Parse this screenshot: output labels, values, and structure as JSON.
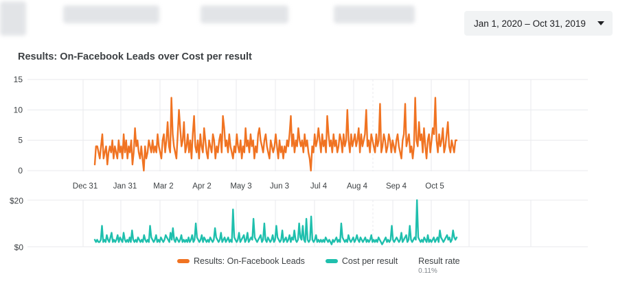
{
  "header": {
    "date_range": "Jan 1, 2020 – Oct 31, 2019"
  },
  "colors": {
    "leads": "#f07322",
    "cost": "#1fbfad",
    "grid": "#e8eaed"
  },
  "legend": {
    "leads_label": "Results: On-Facebook Leads",
    "cost_label": "Cost per result",
    "rate_label": "Result rate",
    "rate_value": "0.11%"
  },
  "chart_data": [
    {
      "type": "line",
      "title": "Results: On-Facebook Leads over Cost per result",
      "xlabel": "",
      "ylabel": "",
      "x_tick_labels": [
        "Dec 31",
        "Jan 31",
        "Mar 2",
        "Apr 2",
        "May 3",
        "Jun 3",
        "Jul 4",
        "Aug 4",
        "Sep 4",
        "Oct 5"
      ],
      "y_tick_labels": [
        "15",
        "10",
        "5",
        "0"
      ],
      "ylim": [
        0,
        15
      ],
      "grid": true,
      "series": [
        {
          "name": "Results: On-Facebook Leads",
          "values": [
            1,
            4,
            4,
            3,
            2,
            4,
            6,
            2,
            3,
            4,
            1,
            3,
            4,
            3,
            5,
            2,
            4,
            3,
            2,
            5,
            3,
            4,
            2,
            6,
            3,
            5,
            2,
            4,
            3,
            5,
            1,
            3,
            7,
            4,
            5,
            3,
            2,
            4,
            2,
            0,
            4,
            2,
            3,
            5,
            4,
            3,
            5,
            3,
            4,
            3,
            6,
            4,
            3,
            2,
            5,
            6,
            3,
            5,
            8,
            4,
            3,
            12,
            6,
            4,
            3,
            2,
            6,
            10,
            7,
            4,
            5,
            8,
            3,
            4,
            6,
            3,
            5,
            2,
            6,
            9,
            4,
            3,
            5,
            2,
            6,
            4,
            3,
            7,
            5,
            3,
            2,
            5,
            4,
            3,
            6,
            5,
            2,
            4,
            3,
            5,
            6,
            3,
            9,
            7,
            4,
            5,
            3,
            6,
            4,
            3,
            2,
            4,
            3,
            6,
            4,
            3,
            5,
            2,
            4,
            3,
            7,
            4,
            5,
            3,
            6,
            4,
            5,
            2,
            4,
            3,
            6,
            7,
            5,
            4,
            3,
            5,
            6,
            4,
            3,
            2,
            5,
            4,
            3,
            4,
            6,
            4,
            2,
            5,
            3,
            4,
            2,
            4,
            3,
            5,
            4,
            6,
            9,
            4,
            6,
            3,
            5,
            4,
            7,
            5,
            4,
            5,
            3,
            6,
            4,
            5,
            3,
            2,
            0,
            4,
            3,
            6,
            4,
            5,
            7,
            5,
            3,
            6,
            4,
            5,
            3,
            9,
            6,
            4,
            5,
            3,
            6,
            4,
            5,
            3,
            4,
            6,
            5,
            3,
            6,
            4,
            5,
            10,
            5,
            3,
            6,
            4,
            5,
            6,
            4,
            5,
            7,
            3,
            6,
            4,
            5,
            6,
            10,
            4,
            5,
            3,
            6,
            5,
            4,
            3,
            6,
            4,
            5,
            11,
            3,
            4,
            6,
            5,
            3,
            4,
            6,
            5,
            3,
            5,
            4,
            3,
            5,
            6,
            4,
            3,
            2,
            5,
            6,
            11,
            4,
            5,
            6,
            3,
            4,
            2,
            4,
            12,
            5,
            4,
            8,
            5,
            6,
            3,
            7,
            4,
            2,
            5,
            6,
            3,
            5,
            7,
            6,
            12,
            5,
            3,
            6,
            4,
            5,
            7,
            3,
            4,
            6,
            8,
            4,
            3,
            5,
            4,
            3,
            5,
            5
          ]
        }
      ]
    },
    {
      "type": "line",
      "title": "",
      "xlabel": "",
      "ylabel": "",
      "y_tick_labels": [
        "$20",
        "$0"
      ],
      "ylim": [
        0,
        20
      ],
      "grid": true,
      "series": [
        {
          "name": "Cost per result",
          "values": [
            3,
            2,
            3,
            2,
            2,
            3,
            9,
            2,
            3,
            2,
            5,
            3,
            2,
            4,
            6,
            2,
            3,
            2,
            3,
            5,
            2,
            4,
            3,
            2,
            6,
            3,
            2,
            3,
            2,
            4,
            2,
            7,
            3,
            2,
            3,
            2,
            4,
            3,
            2,
            3,
            2,
            5,
            3,
            2,
            3,
            2,
            9,
            4,
            3,
            2,
            3,
            5,
            2,
            3,
            2,
            4,
            3,
            2,
            3,
            5,
            4,
            3,
            2,
            6,
            3,
            8,
            3,
            2,
            4,
            3,
            2,
            3,
            5,
            2,
            3,
            2,
            3,
            2,
            4,
            2,
            3,
            5,
            2,
            3,
            10,
            4,
            3,
            2,
            3,
            5,
            2,
            4,
            3,
            2,
            3,
            2,
            4,
            3,
            2,
            3,
            8,
            4,
            3,
            2,
            3,
            6,
            2,
            3,
            4,
            2,
            3,
            4,
            2,
            3,
            2,
            16,
            4,
            3,
            2,
            3,
            6,
            2,
            3,
            4,
            5,
            2,
            3,
            6,
            2,
            3,
            4,
            3,
            12,
            4,
            3,
            2,
            3,
            4,
            5,
            2,
            3,
            10,
            3,
            2,
            4,
            3,
            2,
            3,
            5,
            2,
            3,
            9,
            4,
            3,
            2,
            3,
            7,
            2,
            3,
            4,
            2,
            3,
            5,
            2,
            4,
            3,
            7,
            3,
            2,
            3,
            10,
            4,
            3,
            9,
            3,
            2,
            12,
            3,
            2,
            3,
            13,
            3,
            2,
            3,
            5,
            2,
            3,
            2,
            3,
            2,
            3,
            2,
            4,
            3,
            2,
            3,
            2,
            1,
            3,
            2,
            3,
            4,
            2,
            3,
            2,
            10,
            4,
            3,
            2,
            3,
            2,
            5,
            3,
            2,
            3,
            4,
            2,
            3,
            5,
            3,
            2,
            4,
            3,
            2,
            3,
            4,
            2,
            3,
            2,
            3,
            5,
            2,
            3,
            2,
            3,
            2,
            4,
            3,
            2,
            1,
            2,
            3,
            4,
            2,
            3,
            2,
            3,
            9,
            3,
            2,
            3,
            4,
            3,
            2,
            3,
            6,
            2,
            3,
            4,
            5,
            2,
            3,
            9,
            3,
            2,
            3,
            4,
            3,
            20,
            4,
            3,
            2,
            3,
            2,
            4,
            3,
            2,
            5,
            2,
            3,
            2,
            3,
            4,
            2,
            3,
            4,
            2,
            7,
            4,
            3,
            2,
            3,
            4,
            5,
            3,
            4,
            2,
            3,
            7,
            4,
            3,
            4
          ]
        }
      ]
    }
  ]
}
